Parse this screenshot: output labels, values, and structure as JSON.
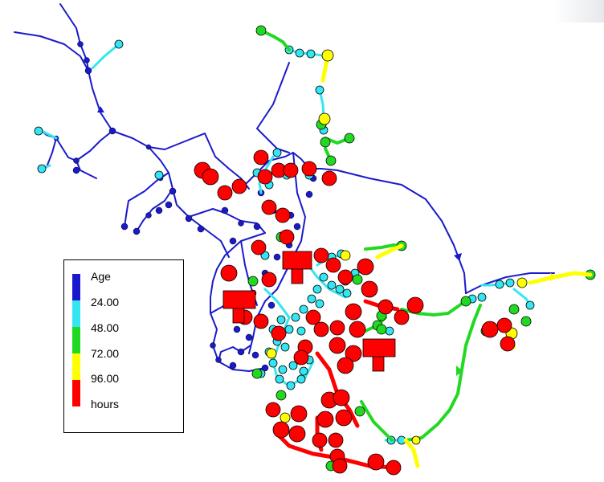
{
  "colors": {
    "background": "#ffffff",
    "age_0_24": "#1a1acc",
    "age_24_48": "#33e6f2",
    "age_48_72": "#22d922",
    "age_72_96": "#ffff00",
    "age_96_plus": "#ff0000",
    "outline": "#000000"
  },
  "legend": {
    "title": "Age",
    "thresholds": [
      "24.00",
      "48.00",
      "72.00",
      "96.00"
    ],
    "units": "hours",
    "swatch_colors": [
      "#1a1acc",
      "#33e6f2",
      "#22d922",
      "#ffff00",
      "#ff0000"
    ]
  }
}
